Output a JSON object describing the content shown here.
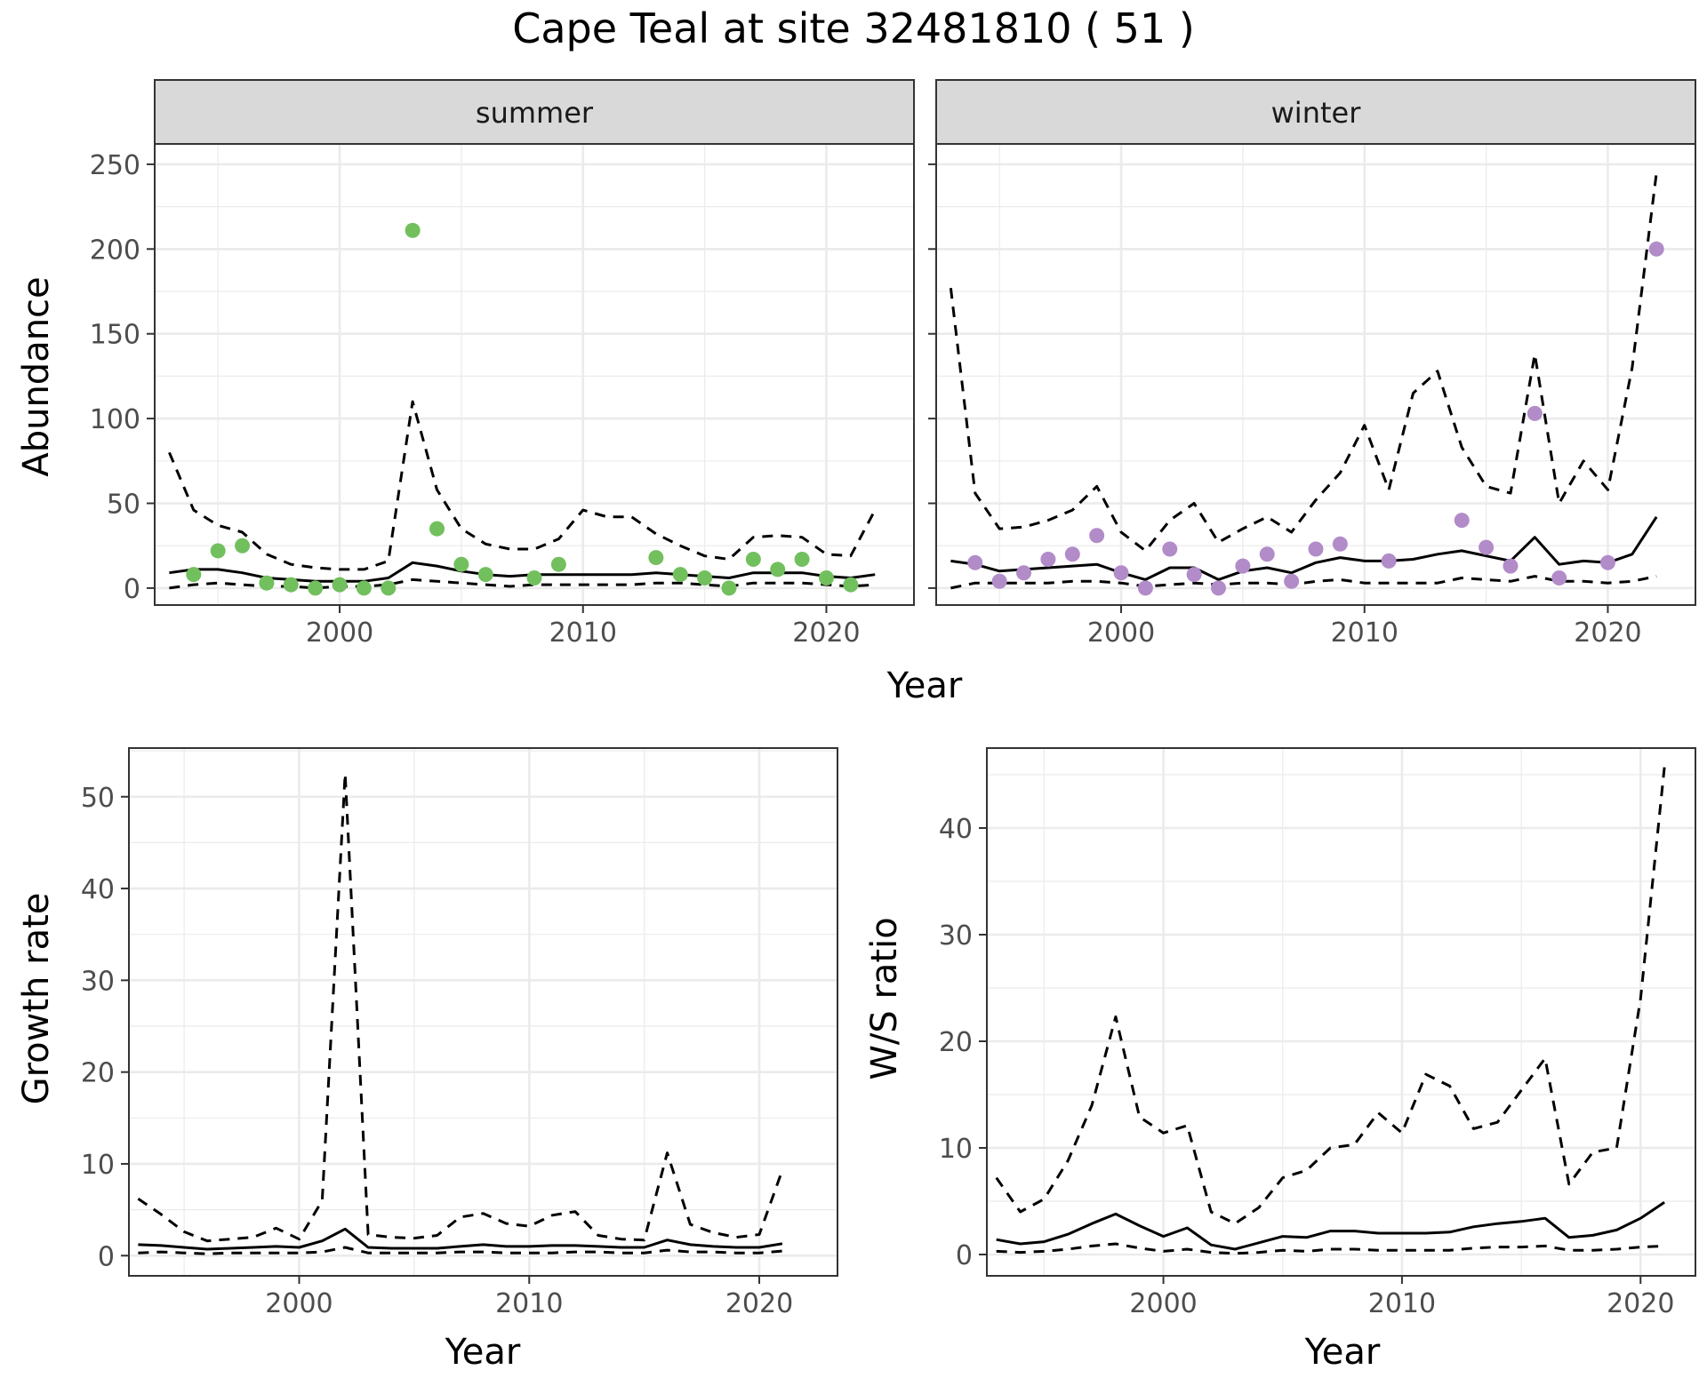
{
  "title": "Cape Teal at site 32481810 ( 51 )",
  "colors": {
    "summer_points": "#72bf5e",
    "winter_points": "#b28bc9",
    "lines": "#000000",
    "strip_fill": "#d9d9d9",
    "grid": "#ebebeb",
    "axis_text": "#4d4d4d"
  },
  "chart_data": [
    {
      "id": "summer",
      "type": "line",
      "strip_label": "summer",
      "ylabel": "Abundance",
      "xlim": [
        1992.4,
        2023.6
      ],
      "ylim": [
        -10,
        262
      ],
      "xticks": [
        2000,
        2010,
        2020
      ],
      "yticks": [
        0,
        50,
        100,
        150,
        200,
        250
      ],
      "x": [
        1993,
        1994,
        1995,
        1996,
        1997,
        1998,
        1999,
        2000,
        2001,
        2002,
        2003,
        2004,
        2005,
        2006,
        2007,
        2008,
        2009,
        2010,
        2011,
        2012,
        2013,
        2014,
        2015,
        2016,
        2017,
        2018,
        2019,
        2020,
        2021,
        2022
      ],
      "series": [
        {
          "style": "dashed",
          "values": [
            80,
            46,
            37,
            33,
            20,
            14,
            12,
            11,
            11,
            16,
            110,
            58,
            35,
            26,
            23,
            23,
            29,
            46,
            42,
            42,
            32,
            25,
            19,
            17,
            30,
            31,
            30,
            20,
            19,
            46
          ]
        },
        {
          "style": "solid",
          "values": [
            9,
            11,
            11,
            9,
            6,
            5,
            4,
            4,
            4,
            6,
            15,
            13,
            10,
            8,
            7,
            8,
            8,
            8,
            8,
            8,
            9,
            8,
            7,
            6,
            9,
            9,
            9,
            7,
            6,
            8
          ]
        },
        {
          "style": "dashed",
          "values": [
            0,
            2,
            3,
            2,
            1,
            1,
            0,
            1,
            1,
            2,
            5,
            4,
            3,
            2,
            1,
            2,
            2,
            2,
            2,
            2,
            3,
            3,
            2,
            1,
            3,
            3,
            3,
            2,
            1,
            2
          ]
        }
      ],
      "points": {
        "x": [
          1994,
          1995,
          1996,
          1997,
          1998,
          1999,
          2000,
          2001,
          2002,
          2003,
          2004,
          2005,
          2006,
          2008,
          2009,
          2013,
          2014,
          2015,
          2016,
          2017,
          2018,
          2019,
          2020,
          2021
        ],
        "y": [
          8,
          22,
          25,
          3,
          2,
          0,
          2,
          0,
          0,
          211,
          35,
          14,
          8,
          6,
          14,
          18,
          8,
          6,
          0,
          17,
          11,
          17,
          6,
          2
        ]
      }
    },
    {
      "id": "winter",
      "type": "line",
      "strip_label": "winter",
      "xlim": [
        1992.4,
        2023.6
      ],
      "ylim": [
        -10,
        262
      ],
      "xticks": [
        2000,
        2010,
        2020
      ],
      "yticks": [
        0,
        50,
        100,
        150,
        200,
        250
      ],
      "x": [
        1993,
        1994,
        1995,
        1996,
        1997,
        1998,
        1999,
        2000,
        2001,
        2002,
        2003,
        2004,
        2005,
        2006,
        2007,
        2008,
        2009,
        2010,
        2011,
        2012,
        2013,
        2014,
        2015,
        2016,
        2017,
        2018,
        2019,
        2020,
        2021,
        2022
      ],
      "series": [
        {
          "style": "dashed",
          "values": [
            177,
            56,
            35,
            36,
            40,
            46,
            60,
            33,
            22,
            40,
            50,
            27,
            35,
            42,
            33,
            52,
            68,
            96,
            58,
            115,
            128,
            83,
            60,
            56,
            138,
            50,
            75,
            58,
            130,
            245
          ]
        },
        {
          "style": "solid",
          "values": [
            16,
            14,
            10,
            11,
            12,
            13,
            14,
            9,
            5,
            12,
            12,
            5,
            10,
            12,
            9,
            15,
            18,
            16,
            16,
            17,
            20,
            22,
            19,
            16,
            30,
            14,
            16,
            15,
            20,
            42
          ]
        },
        {
          "style": "dashed",
          "values": [
            0,
            3,
            3,
            3,
            3,
            4,
            4,
            3,
            1,
            2,
            3,
            2,
            3,
            3,
            2,
            4,
            5,
            3,
            3,
            3,
            3,
            6,
            5,
            4,
            7,
            4,
            4,
            3,
            4,
            7
          ]
        }
      ],
      "points": {
        "x": [
          1994,
          1995,
          1996,
          1997,
          1998,
          1999,
          2000,
          2001,
          2002,
          2003,
          2004,
          2005,
          2006,
          2007,
          2008,
          2009,
          2011,
          2014,
          2015,
          2016,
          2017,
          2018,
          2020,
          2022
        ],
        "y": [
          15,
          4,
          9,
          17,
          20,
          31,
          9,
          0,
          23,
          8,
          0,
          13,
          20,
          4,
          23,
          26,
          16,
          40,
          24,
          13,
          103,
          6,
          15,
          200
        ]
      }
    },
    {
      "id": "growth",
      "type": "line",
      "xlabel": "Year",
      "ylabel": "Growth rate",
      "xlim": [
        1992.6,
        2023.4
      ],
      "ylim": [
        -2.2,
        55.3
      ],
      "xticks": [
        2000,
        2010,
        2020
      ],
      "yticks": [
        0,
        10,
        20,
        30,
        40,
        50
      ],
      "x": [
        1993,
        1994,
        1995,
        1996,
        1997,
        1998,
        1999,
        2000,
        2001,
        2002,
        2003,
        2004,
        2005,
        2006,
        2007,
        2008,
        2009,
        2010,
        2011,
        2012,
        2013,
        2014,
        2015,
        2016,
        2017,
        2018,
        2019,
        2020,
        2021
      ],
      "series": [
        {
          "style": "dashed",
          "values": [
            6.2,
            4.5,
            2.6,
            1.6,
            1.8,
            2.0,
            3.0,
            1.8,
            6.0,
            52.5,
            2.3,
            2.0,
            1.9,
            2.2,
            4.2,
            4.6,
            3.5,
            3.2,
            4.4,
            4.8,
            2.2,
            1.8,
            1.7,
            11.2,
            3.4,
            2.5,
            2.0,
            2.3,
            9.3
          ]
        },
        {
          "style": "solid",
          "values": [
            1.2,
            1.1,
            0.9,
            0.7,
            0.8,
            0.9,
            1.0,
            0.9,
            1.6,
            2.9,
            0.9,
            0.8,
            0.8,
            0.8,
            1.0,
            1.2,
            1.0,
            1.0,
            1.1,
            1.1,
            1.0,
            0.9,
            0.9,
            1.7,
            1.2,
            1.0,
            0.9,
            0.9,
            1.3
          ]
        },
        {
          "style": "dashed",
          "values": [
            0.3,
            0.4,
            0.3,
            0.2,
            0.3,
            0.3,
            0.3,
            0.3,
            0.4,
            0.9,
            0.3,
            0.3,
            0.3,
            0.3,
            0.4,
            0.4,
            0.3,
            0.3,
            0.3,
            0.4,
            0.4,
            0.3,
            0.3,
            0.6,
            0.4,
            0.4,
            0.3,
            0.3,
            0.5
          ]
        }
      ]
    },
    {
      "id": "ratio",
      "type": "line",
      "xlabel": "Year",
      "ylabel": "W/S ratio",
      "xlim": [
        1992.6,
        2022.3
      ],
      "ylim": [
        -2.0,
        47.5
      ],
      "xticks": [
        2000,
        2010,
        2020
      ],
      "yticks": [
        0,
        10,
        20,
        30,
        40
      ],
      "x": [
        1993,
        1994,
        1995,
        1996,
        1997,
        1998,
        1999,
        2000,
        2001,
        2002,
        2003,
        2004,
        2005,
        2006,
        2007,
        2008,
        2009,
        2010,
        2011,
        2012,
        2013,
        2014,
        2015,
        2016,
        2017,
        2018,
        2019,
        2020,
        2021
      ],
      "series": [
        {
          "style": "dashed",
          "values": [
            7.2,
            4.0,
            5.2,
            8.8,
            14.0,
            22.3,
            12.9,
            11.4,
            12.1,
            4.0,
            2.9,
            4.4,
            7.2,
            7.9,
            10.0,
            10.3,
            13.3,
            11.4,
            16.9,
            15.8,
            11.8,
            12.4,
            15.4,
            18.4,
            6.6,
            9.6,
            10.0,
            24.0,
            45.7
          ]
        },
        {
          "style": "solid",
          "values": [
            1.4,
            1.0,
            1.2,
            1.9,
            2.9,
            3.8,
            2.7,
            1.7,
            2.5,
            0.9,
            0.5,
            1.1,
            1.7,
            1.6,
            2.2,
            2.2,
            2.0,
            2.0,
            2.0,
            2.1,
            2.6,
            2.9,
            3.1,
            3.4,
            1.6,
            1.8,
            2.3,
            3.4,
            4.9
          ]
        },
        {
          "style": "dashed",
          "values": [
            0.3,
            0.2,
            0.3,
            0.5,
            0.8,
            1.0,
            0.6,
            0.3,
            0.5,
            0.2,
            0.1,
            0.2,
            0.4,
            0.3,
            0.5,
            0.5,
            0.4,
            0.4,
            0.4,
            0.4,
            0.6,
            0.7,
            0.7,
            0.8,
            0.4,
            0.4,
            0.5,
            0.7,
            0.8
          ]
        }
      ]
    }
  ]
}
